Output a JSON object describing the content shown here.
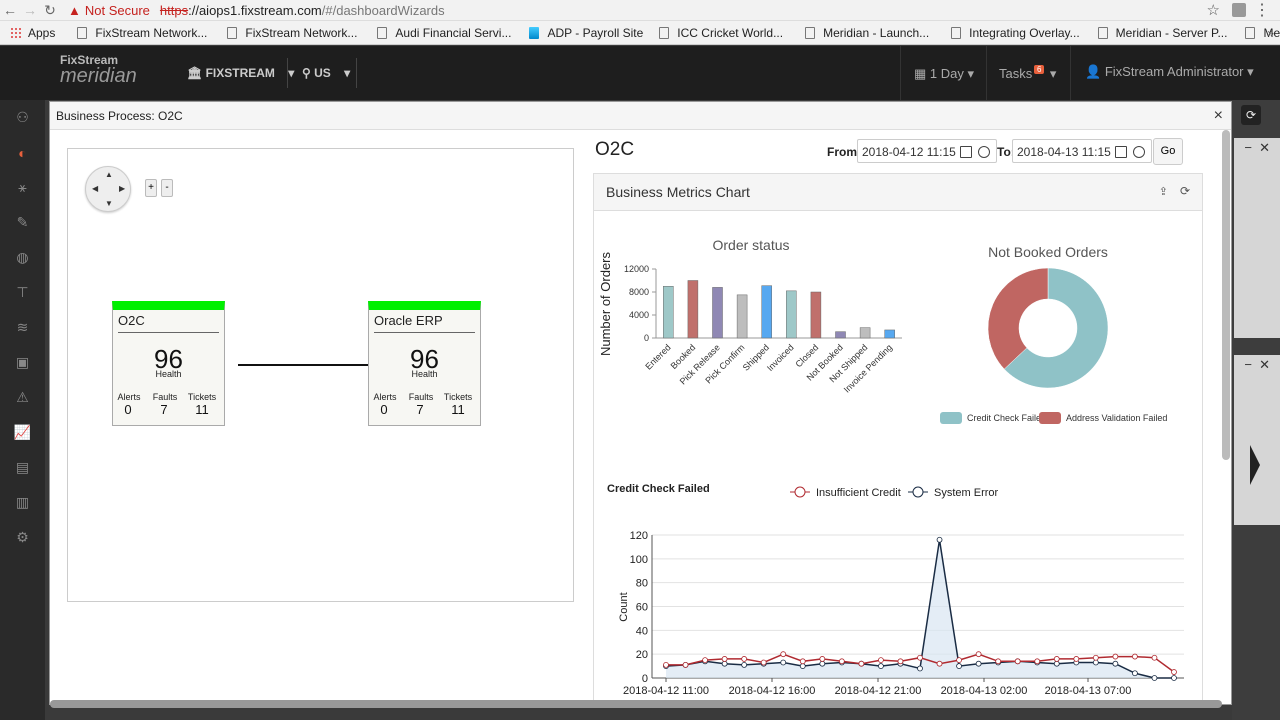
{
  "browser": {
    "security": "Not Secure",
    "url_scheme": "https",
    "url_host": "://aiops1.fixstream.com",
    "url_path": "/#/dashboardWizards",
    "bookmarks": [
      "Apps",
      "FixStream Network...",
      "FixStream Network...",
      "Audi Financial Servi...",
      "ADP - Payroll Site",
      "ICC Cricket World...",
      "Meridian - Launch...",
      "Integrating Overlay...",
      "Meridian - Server P...",
      "Meridian"
    ]
  },
  "header": {
    "logo_top": "FixStream",
    "logo_bottom": "meridian",
    "org": "FIXSTREAM",
    "region": "US",
    "time_range": "1 Day",
    "tasks_label": "Tasks",
    "tasks_count": "6",
    "user": "FixStream Administrator"
  },
  "modal": {
    "title": "Business Process: O2C",
    "close": "×",
    "heading": "O2C",
    "from_label": "From:",
    "from_value": "2018-04-12 11:15",
    "to_label": "To:",
    "to_value": "2018-04-13 11:15",
    "go": "Go",
    "panel_title": "Business Metrics Chart",
    "zoom_in": "+",
    "zoom_out": "-"
  },
  "nodes": [
    {
      "name": "O2C",
      "health": "96",
      "health_label": "Health",
      "alerts_label": "Alerts",
      "alerts": "0",
      "faults_label": "Faults",
      "faults": "7",
      "tickets_label": "Tickets",
      "tickets": "11"
    },
    {
      "name": "Oracle ERP",
      "health": "96",
      "health_label": "Health",
      "alerts_label": "Alerts",
      "alerts": "0",
      "faults_label": "Faults",
      "faults": "7",
      "tickets_label": "Tickets",
      "tickets": "11"
    }
  ],
  "chart_data": [
    {
      "type": "bar",
      "title": "Order status",
      "ylabel": "Number of Orders",
      "categories": [
        "Entered",
        "Booked",
        "Pick Release",
        "Pick Confirm",
        "Shipped",
        "Invoiced",
        "Closed",
        "Not Booked",
        "Not Shipped",
        "Invoice Pending"
      ],
      "values": [
        9000,
        10000,
        8800,
        7500,
        9100,
        8200,
        8000,
        1100,
        1800,
        1400
      ],
      "colors": [
        "#9ec8c8",
        "#c0706c",
        "#8f88b4",
        "#bdbdbd",
        "#57a8f0",
        "#9ec8c8",
        "#c0706c",
        "#8f88b4",
        "#bdbdbd",
        "#57a8f0"
      ],
      "yticks": [
        0,
        4000,
        8000,
        12000
      ],
      "ylim": [
        0,
        12000
      ]
    },
    {
      "type": "pie",
      "title": "Not Booked Orders",
      "slices": [
        {
          "name": "Credit Check Failed",
          "value": 63,
          "color": "#8fc2c7"
        },
        {
          "name": "Address Validation Failed",
          "value": 37,
          "color": "#c06662"
        }
      ]
    },
    {
      "type": "line",
      "title": "Credit Check Failed",
      "ylabel": "Count",
      "x_tick_labels": [
        "2018-04-12 11:00",
        "2018-04-12 16:00",
        "2018-04-12 21:00",
        "2018-04-13 02:00",
        "2018-04-13 07:00"
      ],
      "yticks": [
        0,
        20,
        40,
        60,
        80,
        100,
        120
      ],
      "ylim": [
        0,
        120
      ],
      "series": [
        {
          "name": "Insufficient Credit",
          "color": "#b02a30",
          "values": [
            11,
            11,
            15,
            16,
            16,
            13,
            20,
            14,
            16,
            14,
            12,
            15,
            14,
            17,
            12,
            15,
            20,
            14,
            14,
            14,
            16,
            16,
            17,
            18,
            18,
            17,
            5
          ]
        },
        {
          "name": "System Error",
          "color": "#1a2c44",
          "values": [
            10,
            11,
            14,
            12,
            11,
            12,
            13,
            10,
            12,
            13,
            12,
            10,
            12,
            8,
            116,
            10,
            12,
            13,
            14,
            13,
            12,
            13,
            13,
            12,
            4,
            0,
            0
          ]
        }
      ]
    }
  ]
}
